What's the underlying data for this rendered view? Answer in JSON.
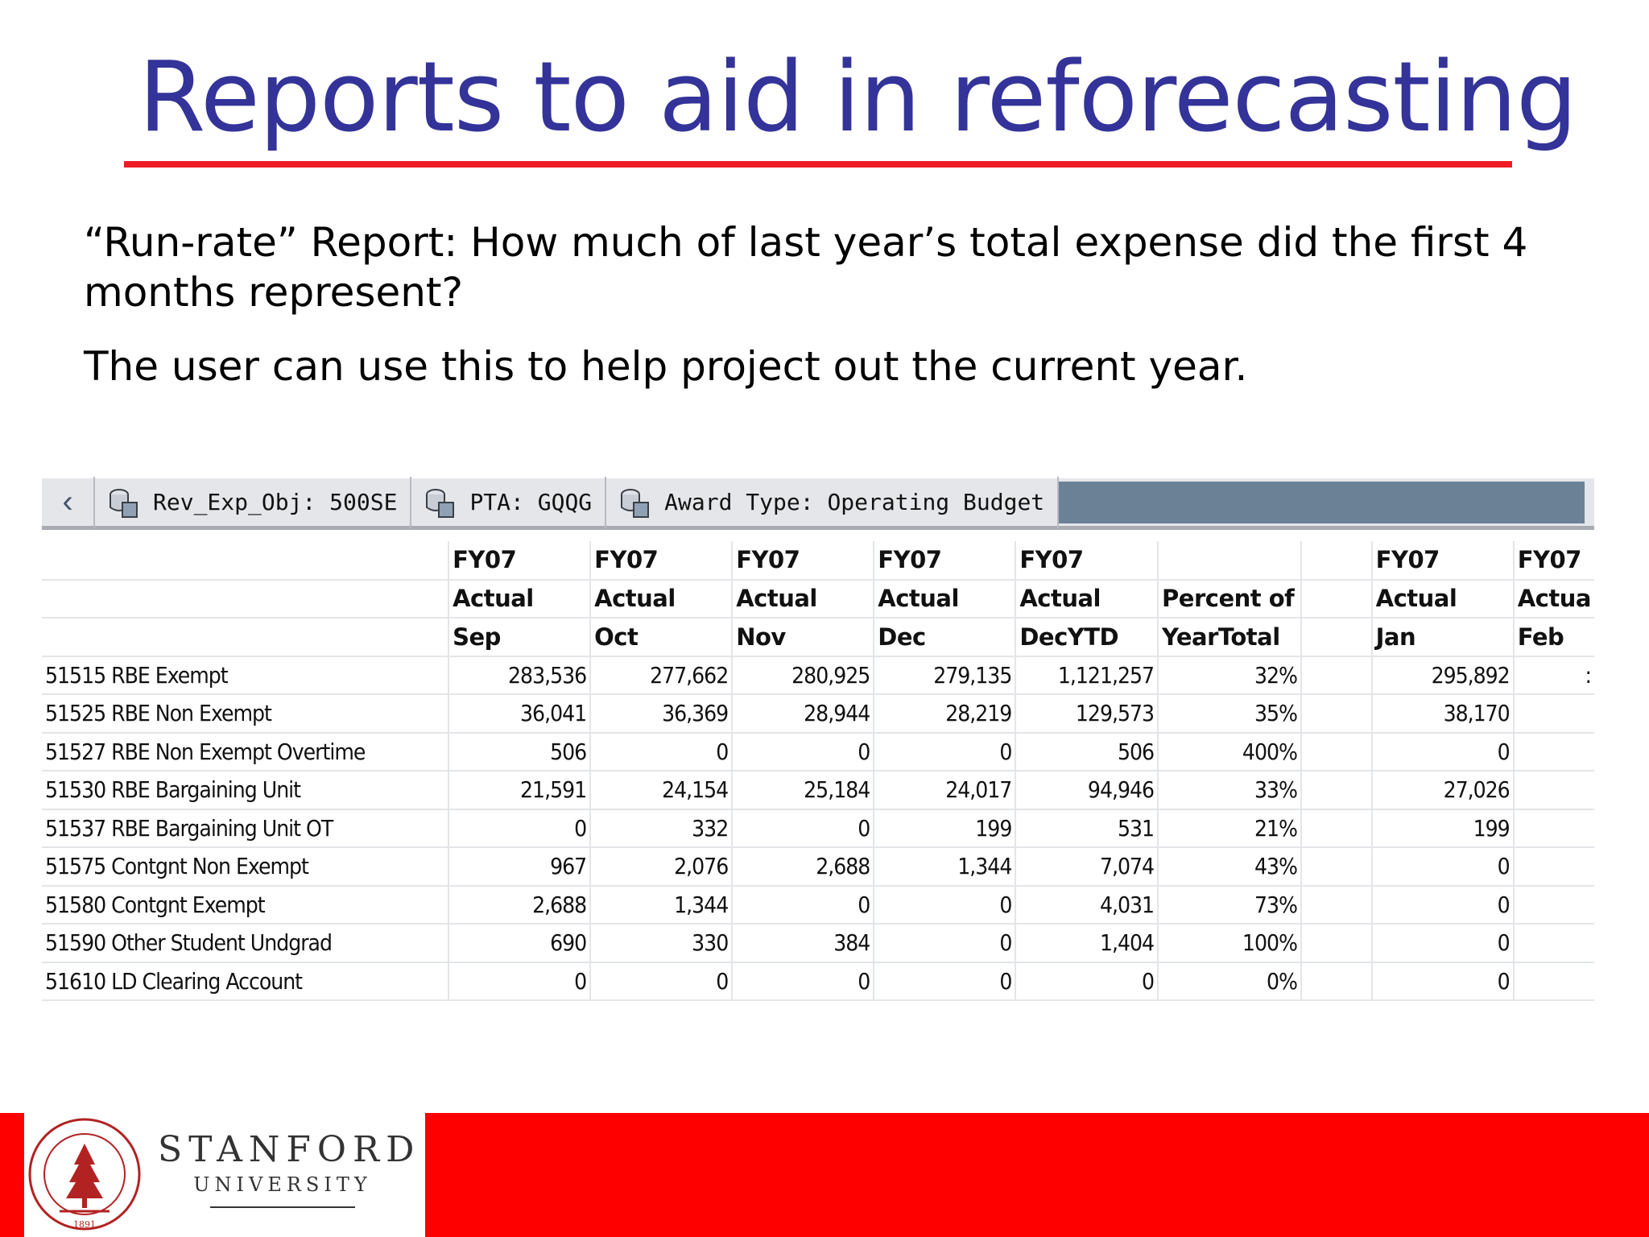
{
  "slide": {
    "title": "Reports to aid in reforecasting",
    "paragraph_1": "“Run-rate” Report: How much of last year’s total expense did the first 4 months represent?",
    "paragraph_2": "The user can use this to help project out the current year."
  },
  "report": {
    "filters": [
      {
        "label": "Rev_Exp_Obj: 500SE",
        "icon": "filter-cube-icon"
      },
      {
        "label": "PTA: GQQG",
        "icon": "filter-cube-icon"
      },
      {
        "label": "Award Type: Operating Budget",
        "icon": "filter-cube-icon"
      }
    ],
    "columns": [
      {
        "line1": "FY07",
        "line2": "Actual",
        "line3": "Sep"
      },
      {
        "line1": "FY07",
        "line2": "Actual",
        "line3": "Oct"
      },
      {
        "line1": "FY07",
        "line2": "Actual",
        "line3": "Nov"
      },
      {
        "line1": "FY07",
        "line2": "Actual",
        "line3": "Dec"
      },
      {
        "line1": "FY07",
        "line2": "Actual",
        "line3": "DecYTD"
      },
      {
        "line1": "",
        "line2": "Percent of",
        "line3": "YearTotal"
      },
      {
        "line1": "",
        "line2": "",
        "line3": ""
      },
      {
        "line1": "FY07",
        "line2": "Actual",
        "line3": "Jan"
      },
      {
        "line1": "FY07",
        "line2": "Actua",
        "line3": "Feb"
      }
    ],
    "rows": [
      {
        "label": "51515 RBE Exempt",
        "values": [
          "283,536",
          "277,662",
          "280,925",
          "279,135",
          "1,121,257",
          "32%",
          "",
          "295,892",
          ":"
        ]
      },
      {
        "label": "51525 RBE Non Exempt",
        "values": [
          "36,041",
          "36,369",
          "28,944",
          "28,219",
          "129,573",
          "35%",
          "",
          "38,170",
          ""
        ]
      },
      {
        "label": "51527 RBE Non Exempt Overtime",
        "values": [
          "506",
          "0",
          "0",
          "0",
          "506",
          "400%",
          "",
          "0",
          ""
        ]
      },
      {
        "label": "51530 RBE Bargaining Unit",
        "values": [
          "21,591",
          "24,154",
          "25,184",
          "24,017",
          "94,946",
          "33%",
          "",
          "27,026",
          ""
        ]
      },
      {
        "label": "51537 RBE Bargaining Unit OT",
        "values": [
          "0",
          "332",
          "0",
          "199",
          "531",
          "21%",
          "",
          "199",
          ""
        ]
      },
      {
        "label": "51575 Contgnt Non Exempt",
        "values": [
          "967",
          "2,076",
          "2,688",
          "1,344",
          "7,074",
          "43%",
          "",
          "0",
          ""
        ]
      },
      {
        "label": "51580 Contgnt Exempt",
        "values": [
          "2,688",
          "1,344",
          "0",
          "0",
          "4,031",
          "73%",
          "",
          "0",
          ""
        ]
      },
      {
        "label": "51590 Other Student Undgrad",
        "values": [
          "690",
          "330",
          "384",
          "0",
          "1,404",
          "100%",
          "",
          "0",
          ""
        ]
      },
      {
        "label": "51610 LD Clearing Account",
        "values": [
          "0",
          "0",
          "0",
          "0",
          "0",
          "0%",
          "",
          "0",
          ""
        ]
      }
    ]
  },
  "footer": {
    "logo_line1": "STANFORD",
    "logo_line2": "UNIVERSITY",
    "seal_text_top": "LELAND STANFORD JUNIOR UNIVERSITY",
    "seal_year": "1891"
  },
  "colors": {
    "title": "#333399",
    "accent_red": "#ff0000",
    "rule_red": "#ee1c25",
    "filter_bar_fill": "#6b8196"
  }
}
